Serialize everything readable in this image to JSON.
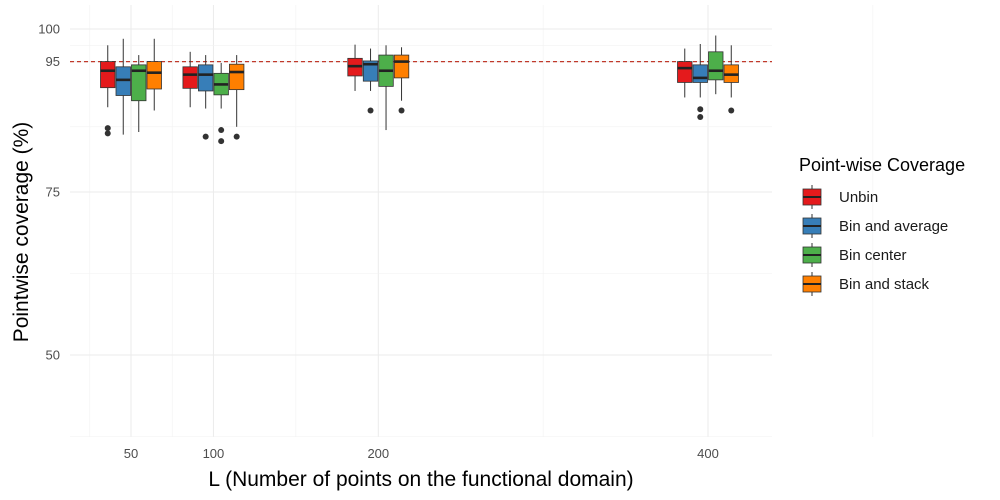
{
  "chart_data": {
    "type": "boxplot",
    "xlabel": "L (Number of points on the functional domain)",
    "ylabel": "Pointwise coverage (%)",
    "x_ticks": [
      50,
      100,
      200,
      400
    ],
    "y_ticks": [
      50,
      75,
      95,
      100
    ],
    "ylim": [
      37.5,
      103
    ],
    "reference_line": {
      "y": 95,
      "style": "dashed",
      "color": "#c0392b"
    },
    "grid": true,
    "legend": {
      "title": "Point-wise Coverage",
      "position": "right",
      "items": [
        {
          "label": "Unbin",
          "color": "#e41a1c"
        },
        {
          "label": "Bin and average",
          "color": "#377eb8"
        },
        {
          "label": "Bin center",
          "color": "#4daf4a"
        },
        {
          "label": "Bin and stack",
          "color": "#ff7f00"
        }
      ]
    },
    "categories": [
      "50",
      "100",
      "200",
      "400"
    ],
    "series": [
      {
        "name": "Unbin",
        "color": "#e41a1c",
        "boxes": [
          {
            "whisker_low": 88,
            "q1": 91,
            "median": 93.6,
            "q3": 95,
            "whisker_high": 97.5,
            "outliers": [
              84,
              84.8
            ]
          },
          {
            "whisker_low": 88,
            "q1": 90.9,
            "median": 93,
            "q3": 94.2,
            "whisker_high": 96.5,
            "outliers": []
          },
          {
            "whisker_low": 90.5,
            "q1": 92.8,
            "median": 94.3,
            "q3": 95.5,
            "whisker_high": 97.6,
            "outliers": []
          },
          {
            "whisker_low": 89.5,
            "q1": 91.8,
            "median": 94,
            "q3": 95,
            "whisker_high": 97,
            "outliers": []
          }
        ]
      },
      {
        "name": "Bin and average",
        "color": "#377eb8",
        "boxes": [
          {
            "whisker_low": 83.8,
            "q1": 89.8,
            "median": 92.2,
            "q3": 94.2,
            "whisker_high": 98.5,
            "outliers": []
          },
          {
            "whisker_low": 87.8,
            "q1": 90.5,
            "median": 93,
            "q3": 94.5,
            "whisker_high": 96,
            "outliers": [
              83.5
            ]
          },
          {
            "whisker_low": 90.5,
            "q1": 92,
            "median": 94.6,
            "q3": 95.1,
            "whisker_high": 97,
            "outliers": [
              87.5
            ]
          },
          {
            "whisker_low": 89.5,
            "q1": 91.8,
            "median": 92.5,
            "q3": 94.5,
            "whisker_high": 97.7,
            "outliers": [
              86.5,
              87.7
            ]
          }
        ]
      },
      {
        "name": "Bin center",
        "color": "#4daf4a",
        "boxes": [
          {
            "whisker_low": 84.2,
            "q1": 89,
            "median": 93.6,
            "q3": 94.5,
            "whisker_high": 96,
            "outliers": []
          },
          {
            "whisker_low": 87.8,
            "q1": 89.9,
            "median": 91.5,
            "q3": 93.2,
            "whisker_high": 94.8,
            "outliers": [
              82.8,
              84.5
            ]
          },
          {
            "whisker_low": 84.5,
            "q1": 91.2,
            "median": 93.6,
            "q3": 96,
            "whisker_high": 97.5,
            "outliers": []
          },
          {
            "whisker_low": 90,
            "q1": 92.2,
            "median": 93.6,
            "q3": 96.5,
            "whisker_high": 99,
            "outliers": []
          }
        ]
      },
      {
        "name": "Bin and stack",
        "color": "#ff7f00",
        "boxes": [
          {
            "whisker_low": 87.5,
            "q1": 90.8,
            "median": 93.3,
            "q3": 95,
            "whisker_high": 98.5,
            "outliers": []
          },
          {
            "whisker_low": 85,
            "q1": 90.7,
            "median": 93.4,
            "q3": 94.6,
            "whisker_high": 96,
            "outliers": [
              83.5
            ]
          },
          {
            "whisker_low": 89,
            "q1": 92.5,
            "median": 95,
            "q3": 96,
            "whisker_high": 97.2,
            "outliers": [
              87.5
            ]
          },
          {
            "whisker_low": 89.5,
            "q1": 91.8,
            "median": 93,
            "q3": 94.5,
            "whisker_high": 97.5,
            "outliers": [
              87.5
            ]
          }
        ]
      }
    ]
  }
}
